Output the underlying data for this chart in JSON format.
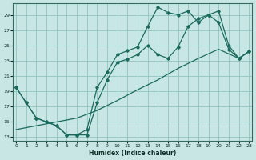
{
  "xlabel": "Humidex (Indice chaleur)",
  "background_color": "#c8e6e3",
  "grid_color": "#8fc4be",
  "line_color": "#1a6b5e",
  "x_ticks": [
    0,
    1,
    2,
    3,
    4,
    5,
    6,
    7,
    8,
    9,
    10,
    11,
    12,
    13,
    14,
    15,
    16,
    17,
    18,
    19,
    20,
    21,
    22,
    23
  ],
  "y_ticks": [
    13,
    15,
    17,
    19,
    21,
    23,
    25,
    27,
    29
  ],
  "xlim": [
    -0.3,
    23.3
  ],
  "ylim": [
    12.5,
    30.5
  ],
  "series1_x": [
    0,
    1,
    2,
    3,
    4,
    5,
    6,
    7,
    8,
    9,
    10,
    11,
    12,
    13,
    14,
    15,
    16,
    17,
    18,
    19,
    20,
    21,
    22,
    23
  ],
  "series1_y": [
    19.5,
    17.5,
    15.5,
    15.0,
    14.5,
    13.3,
    13.3,
    13.3,
    17.5,
    20.5,
    22.8,
    23.2,
    23.8,
    25.0,
    23.8,
    23.3,
    24.8,
    27.5,
    28.5,
    29.0,
    28.0,
    24.5,
    23.3,
    24.2
  ],
  "series2_x": [
    0,
    1,
    2,
    3,
    4,
    5,
    6,
    7,
    8,
    9,
    10,
    11,
    12,
    13,
    14,
    15,
    16,
    17,
    18,
    19,
    20,
    21,
    22,
    23
  ],
  "series2_y": [
    19.5,
    17.5,
    15.5,
    15.0,
    14.5,
    13.3,
    13.3,
    14.0,
    19.5,
    21.5,
    23.8,
    24.3,
    24.8,
    27.5,
    30.0,
    29.3,
    29.0,
    29.5,
    28.0,
    29.0,
    29.5,
    25.0,
    23.3,
    24.2
  ],
  "series3_x": [
    0,
    2,
    4,
    6,
    8,
    10,
    12,
    14,
    16,
    18,
    20,
    22,
    23
  ],
  "series3_y": [
    14.0,
    14.5,
    15.0,
    15.5,
    16.5,
    17.8,
    19.2,
    20.5,
    22.0,
    23.3,
    24.5,
    23.3,
    24.2
  ]
}
